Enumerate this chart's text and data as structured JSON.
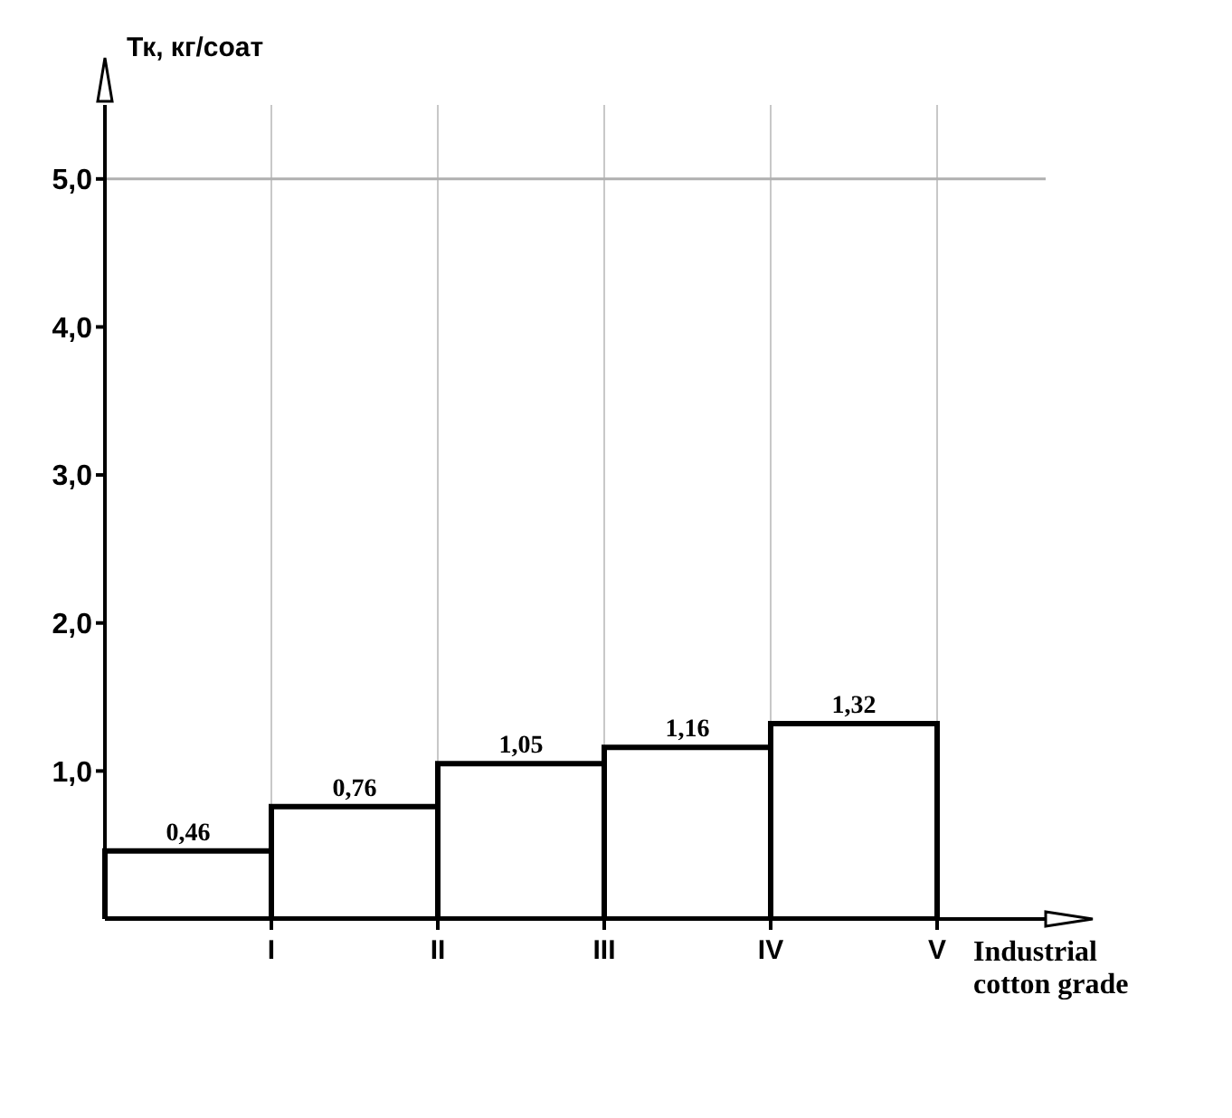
{
  "chart_data": {
    "type": "bar",
    "xlabel": "Industrial cotton grade",
    "ylabel": "Тк, кг/соат",
    "categories": [
      "I",
      "II",
      "III",
      "IV",
      "V"
    ],
    "values": [
      0.46,
      0.76,
      1.05,
      1.16,
      1.32
    ],
    "value_labels": [
      "0,46",
      "0,76",
      "1,05",
      "1,16",
      "1,32"
    ],
    "color": "#000000",
    "ylim": [
      0,
      5.5
    ],
    "yticks": [
      {
        "value": 1,
        "label": "1,0"
      },
      {
        "value": 2,
        "label": "2,0"
      },
      {
        "value": 3,
        "label": "3,0"
      },
      {
        "value": 4,
        "label": "4,0"
      },
      {
        "value": 5,
        "label": "5,0"
      }
    ],
    "grid": "x",
    "ref_lines": [
      {
        "axis": "y",
        "value": 5,
        "label": null,
        "color": "#b0b0b0"
      }
    ]
  }
}
